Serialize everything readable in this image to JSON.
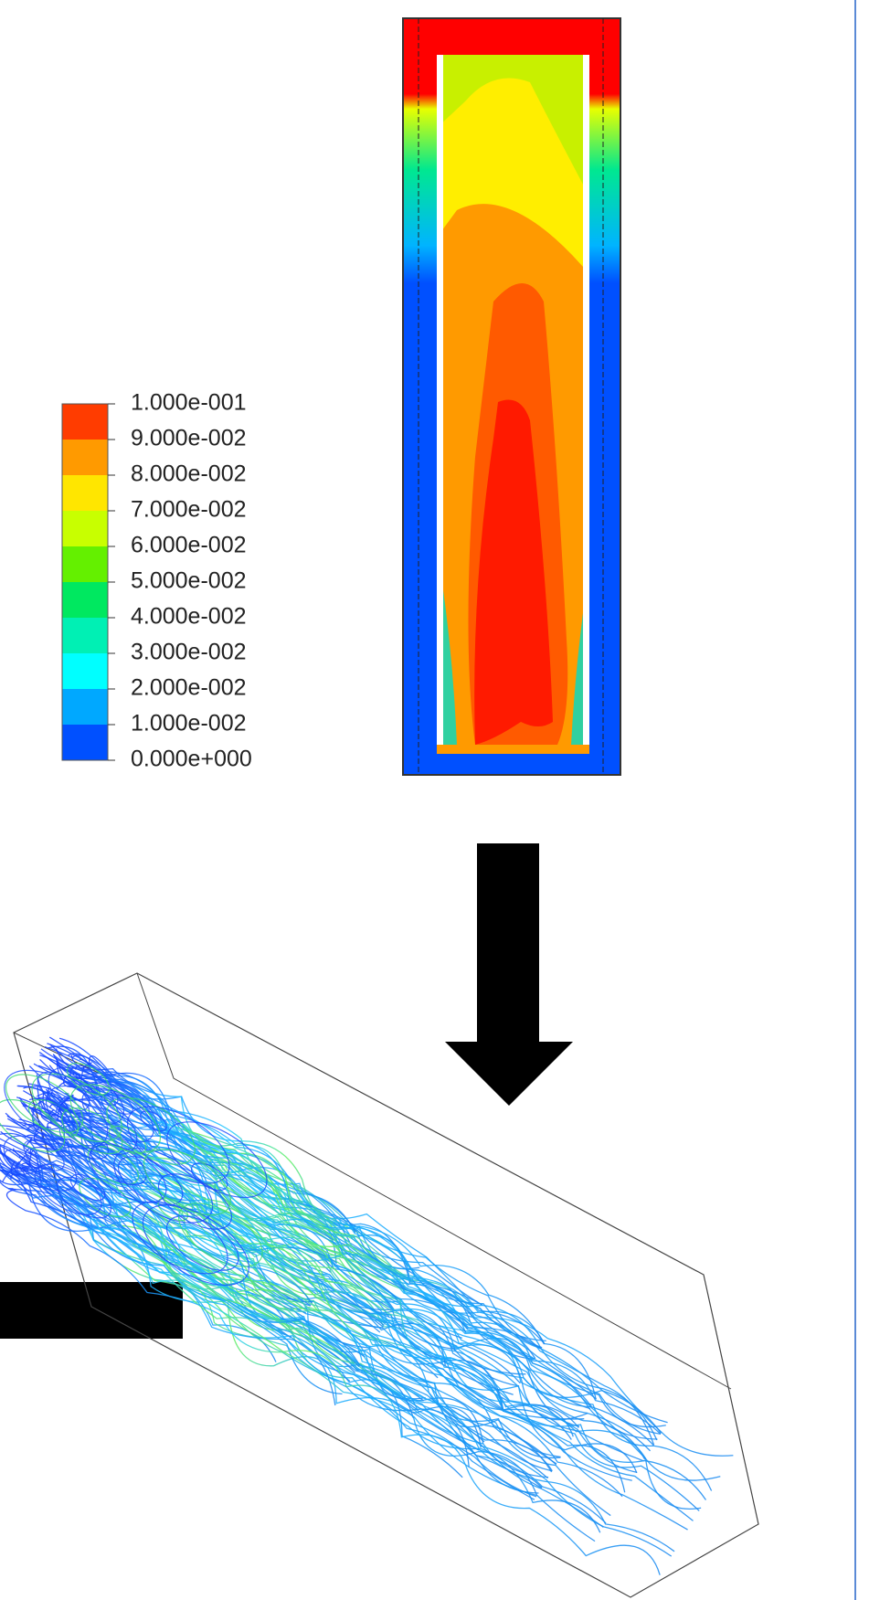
{
  "legend": {
    "labels": [
      "1.000e-001",
      "9.000e-002",
      "8.000e-002",
      "7.000e-002",
      "6.000e-002",
      "5.000e-002",
      "4.000e-002",
      "3.000e-002",
      "2.000e-002",
      "1.000e-002",
      "0.000e+000"
    ],
    "colors": [
      "#ff3c00",
      "#ff9a00",
      "#ffe600",
      "#c8ff00",
      "#64f000",
      "#00e860",
      "#00f0b4",
      "#00ffff",
      "#00a8ff",
      "#0050ff"
    ]
  }
}
